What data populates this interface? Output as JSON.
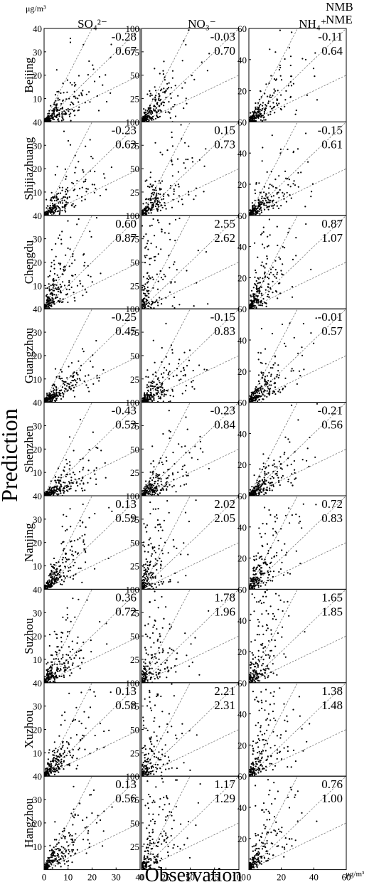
{
  "figure": {
    "unit_top": "μg/m³",
    "unit_bottom": "μg/m³",
    "ylabel": "Prediction",
    "xlabel": "Observation",
    "legend": [
      {
        "label": "NMB",
        "color": "#ff0000"
      },
      {
        "label": "NME",
        "color": "#0066ee"
      }
    ]
  },
  "chart_data": {
    "type": "scatter",
    "columns": [
      {
        "name": "SO₄²⁻",
        "xlim": [
          0,
          40
        ],
        "ylim": [
          0,
          40
        ],
        "xticks": [
          0,
          10,
          20,
          30,
          40
        ],
        "yticks": [
          10,
          20,
          30,
          40
        ]
      },
      {
        "name": "NO₃⁻",
        "xlim": [
          0,
          100
        ],
        "ylim": [
          0,
          100
        ],
        "xticks": [
          0,
          25,
          50,
          75,
          100
        ],
        "yticks": [
          25,
          50,
          75,
          100
        ]
      },
      {
        "name": "NH₄⁺",
        "xlim": [
          0,
          60
        ],
        "ylim": [
          0,
          60
        ],
        "xticks": [
          0,
          20,
          40,
          60
        ],
        "yticks": [
          20,
          40,
          60
        ]
      }
    ],
    "reference_lines": [
      "1:2",
      "1:1",
      "2:1"
    ],
    "rows": [
      {
        "city": "Beijing",
        "nmb": [
          "-0.28",
          "-0.03",
          "-0.11"
        ],
        "nme": [
          "0.67",
          "0.70",
          "0.64"
        ]
      },
      {
        "city": "Shijiazhuang",
        "nmb": [
          "-0.23",
          "0.15",
          "-0.15"
        ],
        "nme": [
          "0.63",
          "0.73",
          "0.61"
        ]
      },
      {
        "city": "Chengdu",
        "nmb": [
          "0.60",
          "2.55",
          "0.87"
        ],
        "nme": [
          "0.87",
          "2.62",
          "1.07"
        ]
      },
      {
        "city": "Guangzhou",
        "nmb": [
          "-0.25",
          "-0.15",
          "-0.01"
        ],
        "nme": [
          "0.45",
          "0.83",
          "0.57"
        ]
      },
      {
        "city": "Shenzhen",
        "nmb": [
          "-0.43",
          "-0.23",
          "-0.21"
        ],
        "nme": [
          "0.53",
          "0.84",
          "0.56"
        ]
      },
      {
        "city": "Nanjing",
        "nmb": [
          "0.13",
          "2.02",
          "0.72"
        ],
        "nme": [
          "0.59",
          "2.05",
          "0.83"
        ]
      },
      {
        "city": "Suzhou",
        "nmb": [
          "0.36",
          "1.78",
          "1.65"
        ],
        "nme": [
          "0.72",
          "1.96",
          "1.85"
        ]
      },
      {
        "city": "Xuzhou",
        "nmb": [
          "0.13",
          "2.21",
          "1.38"
        ],
        "nme": [
          "0.58",
          "2.31",
          "1.48"
        ]
      },
      {
        "city": "Hangzhou",
        "nmb": [
          "0.13",
          "1.17",
          "0.76"
        ],
        "nme": [
          "0.56",
          "1.29",
          "1.00"
        ]
      }
    ]
  }
}
